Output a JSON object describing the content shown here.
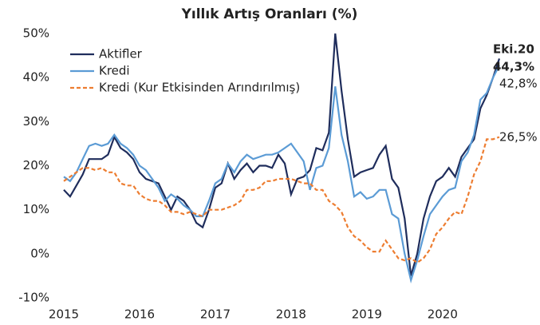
{
  "chart_data": {
    "type": "line",
    "title": "Yıllık Artış Oranları (%)",
    "categories": [
      "2015",
      null,
      null,
      null,
      null,
      null,
      null,
      null,
      null,
      null,
      null,
      null,
      "2016",
      null,
      null,
      null,
      null,
      null,
      null,
      null,
      null,
      null,
      null,
      null,
      "2017",
      null,
      null,
      null,
      null,
      null,
      null,
      null,
      null,
      null,
      null,
      null,
      "2018",
      null,
      null,
      null,
      null,
      null,
      null,
      null,
      null,
      null,
      null,
      null,
      "2019",
      null,
      null,
      null,
      null,
      null,
      null,
      null,
      null,
      null,
      null,
      null,
      "2020",
      null,
      null,
      null,
      null,
      null,
      null,
      null,
      null,
      null
    ],
    "series": [
      {
        "name": "Aktifler",
        "color": "#1f2d5c",
        "dashed": false,
        "values": [
          14.5,
          13,
          15.5,
          18,
          21.5,
          21.5,
          21.5,
          22.5,
          26.5,
          24,
          23,
          21.5,
          18.5,
          17,
          16.5,
          16,
          13,
          10,
          13,
          12,
          10,
          7,
          6,
          10,
          15,
          16,
          20.5,
          17,
          19,
          20.5,
          18.5,
          20,
          20,
          19.5,
          22.5,
          20.5,
          13.5,
          17,
          17.5,
          19,
          24,
          23.5,
          27.5,
          50,
          37,
          26,
          17.5,
          18.5,
          19,
          19.5,
          22.5,
          24.5,
          17,
          15,
          8,
          -5,
          0,
          8,
          13,
          16.5,
          17.5,
          19.5,
          17.5,
          22,
          24,
          26,
          33,
          36,
          40,
          44.3
        ],
        "value_labels": [
          null,
          null,
          null,
          null,
          null,
          null,
          null,
          null,
          null,
          null,
          null,
          null,
          null,
          null,
          null,
          null,
          null,
          null,
          null,
          null,
          null,
          null,
          null,
          null,
          null,
          null,
          null,
          null,
          null,
          null,
          null,
          null,
          null,
          null,
          null,
          null,
          null,
          null,
          null,
          null,
          null,
          null,
          null,
          null,
          null,
          null,
          null,
          null,
          null,
          null,
          null,
          null,
          null,
          null,
          null,
          null,
          null,
          null,
          null,
          null,
          null,
          null,
          null,
          null,
          null,
          null,
          null,
          null,
          null,
          "44,3%"
        ]
      },
      {
        "name": "Kredi",
        "color": "#5b9bd5",
        "dashed": false,
        "values": [
          17.5,
          16.5,
          18.5,
          21.5,
          24.5,
          25,
          24.5,
          25,
          27,
          25,
          24,
          22.5,
          20,
          19,
          17,
          15,
          12,
          13.5,
          12.5,
          11,
          10,
          8.5,
          8.5,
          12,
          16,
          17,
          20.5,
          18.5,
          21,
          22.5,
          21.5,
          22,
          22.5,
          22.5,
          23,
          24,
          25,
          23,
          21,
          14.5,
          19.5,
          20,
          24,
          38,
          27,
          21,
          13,
          14,
          12.5,
          13,
          14.5,
          14.5,
          9,
          8,
          0,
          -6,
          -1.5,
          4,
          9,
          11,
          13,
          14.5,
          15,
          21,
          23,
          27,
          35,
          36.5,
          40,
          42.8
        ],
        "value_labels": [
          null,
          null,
          null,
          null,
          null,
          null,
          null,
          null,
          null,
          null,
          null,
          null,
          null,
          null,
          null,
          null,
          null,
          null,
          null,
          null,
          null,
          null,
          null,
          null,
          null,
          null,
          null,
          null,
          null,
          null,
          null,
          null,
          null,
          null,
          null,
          null,
          null,
          null,
          null,
          null,
          null,
          null,
          null,
          null,
          null,
          null,
          null,
          null,
          null,
          null,
          null,
          null,
          null,
          null,
          null,
          null,
          null,
          null,
          null,
          null,
          null,
          null,
          null,
          null,
          null,
          null,
          null,
          null,
          null,
          "42,8%"
        ]
      },
      {
        "name": "Kredi (Kur Etkisinden Arındırılmış)",
        "color": "#ed7d31",
        "dashed": true,
        "values": [
          16.5,
          17.5,
          18.5,
          19.5,
          19.5,
          19,
          19.5,
          18.5,
          18.5,
          16,
          15.5,
          15.5,
          13.5,
          12.5,
          12,
          12,
          11,
          9.5,
          9.5,
          9,
          9.5,
          9,
          8.5,
          10,
          10,
          10,
          10.5,
          11,
          12,
          14.5,
          14.5,
          15,
          16.5,
          16.5,
          17,
          17,
          17,
          16.5,
          16,
          16,
          14.5,
          14.5,
          12,
          11,
          9.5,
          6,
          4,
          3,
          1.5,
          0.5,
          0.5,
          3,
          1,
          -1,
          -1.5,
          -1,
          -2,
          -1,
          1,
          4.5,
          6,
          8,
          9.5,
          9,
          13,
          18,
          21,
          26,
          26,
          26.5
        ],
        "value_labels": [
          null,
          null,
          null,
          null,
          null,
          null,
          null,
          null,
          null,
          null,
          null,
          null,
          null,
          null,
          null,
          null,
          null,
          null,
          null,
          null,
          null,
          null,
          null,
          null,
          null,
          null,
          null,
          null,
          null,
          null,
          null,
          null,
          null,
          null,
          null,
          null,
          null,
          null,
          null,
          null,
          null,
          null,
          null,
          null,
          null,
          null,
          null,
          null,
          null,
          null,
          null,
          null,
          null,
          null,
          null,
          null,
          null,
          null,
          null,
          null,
          null,
          null,
          null,
          null,
          null,
          null,
          null,
          null,
          null,
          "26,5%"
        ]
      }
    ],
    "annotations": [
      {
        "text": "Eki.20"
      }
    ],
    "ylim": [
      -10,
      50
    ],
    "yticks": [
      {
        "value": -10,
        "label": "-10%"
      },
      {
        "value": 0,
        "label": "0%"
      },
      {
        "value": 10,
        "label": "10%"
      },
      {
        "value": 20,
        "label": "20%"
      },
      {
        "value": 30,
        "label": "30%"
      },
      {
        "value": 40,
        "label": "40%"
      },
      {
        "value": 50,
        "label": "50%"
      }
    ],
    "grid": false,
    "legend": "top-left"
  }
}
